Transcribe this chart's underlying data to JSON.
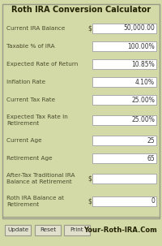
{
  "title": "Roth IRA Conversion Calculator",
  "bg_color": "#d4d9a8",
  "field_bg": "#ffffff",
  "rows": [
    {
      "label": "Current IRA Balance",
      "dollar": true,
      "value": "50,000.00",
      "multiline": false
    },
    {
      "label": "Taxable % of IRA",
      "dollar": false,
      "value": "100.00%",
      "multiline": false
    },
    {
      "label": "Expected Rate of Return",
      "dollar": false,
      "value": "10.85%",
      "multiline": false
    },
    {
      "label": "Inflation Rate",
      "dollar": false,
      "value": "4.10%",
      "multiline": false
    },
    {
      "label": "Current Tax Rate",
      "dollar": false,
      "value": "25.00%",
      "multiline": false
    },
    {
      "label": "Expected Tax Rate In\nRetirement",
      "dollar": false,
      "value": "25.00%",
      "multiline": true
    },
    {
      "label": "Current Age",
      "dollar": false,
      "value": "25",
      "multiline": false
    },
    {
      "label": "Retirement Age",
      "dollar": false,
      "value": "65",
      "multiline": false
    },
    {
      "label": "After-Tax Traditional IRA\nBalance at Retirement",
      "dollar": true,
      "value": "",
      "multiline": true
    },
    {
      "label": "Roth IRA Balance at\nRetirement",
      "dollar": true,
      "value": "0",
      "multiline": true
    }
  ],
  "buttons": [
    "Update",
    "Reset",
    "Print"
  ],
  "footer_text": "Your-Roth-IRA.Com",
  "label_color": "#4a4a2a",
  "value_color": "#333333",
  "title_color": "#222200",
  "footer_color": "#222200",
  "border_color": "#999988",
  "btn_color": "#e0e0cc"
}
